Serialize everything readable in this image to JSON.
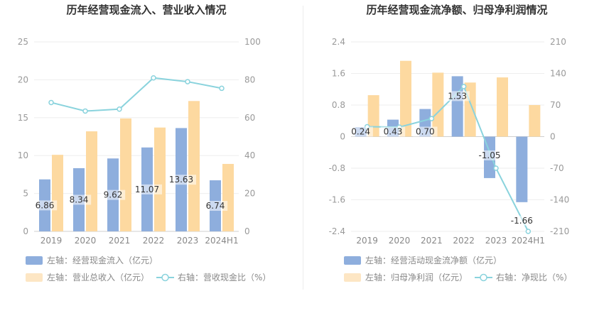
{
  "chart_data": [
    {
      "type": "bar+line",
      "title": "历年经营现金流入、营业收入情况",
      "categories": [
        "2019",
        "2020",
        "2021",
        "2022",
        "2023",
        "2024H1"
      ],
      "left_axis": {
        "ticks": [
          "25",
          "20",
          "15",
          "10",
          "5",
          "0"
        ],
        "min": 0,
        "max": 25
      },
      "right_axis": {
        "ticks": [
          "100",
          "80",
          "60",
          "40",
          "20",
          "0"
        ],
        "min": 0,
        "max": 100
      },
      "series": [
        {
          "name": "左轴：经营现金流入（亿元）",
          "type": "bar",
          "axis": "left",
          "color": "#8eaedd",
          "values": [
            6.86,
            8.34,
            9.62,
            11.07,
            13.63,
            6.74
          ],
          "labels": [
            "6.86",
            "8.34",
            "9.62",
            "11.07",
            "13.63",
            "6.74"
          ]
        },
        {
          "name": "左轴：营业总收入（亿元）",
          "type": "bar",
          "axis": "left",
          "color": "#fdd9a0",
          "values": [
            10.1,
            13.2,
            14.9,
            13.7,
            17.2,
            8.9
          ]
        },
        {
          "name": "右轴：营收现金比（%）",
          "type": "line",
          "axis": "right",
          "color": "#8ad3dd",
          "values": [
            68,
            63.5,
            64.5,
            81,
            79,
            75.5
          ]
        }
      ]
    },
    {
      "type": "bar+line",
      "title": "历年经营现金流净额、归母净利润情况",
      "categories": [
        "2019",
        "2020",
        "2021",
        "2022",
        "2023",
        "2024H1"
      ],
      "left_axis": {
        "ticks": [
          "2.4",
          "1.6",
          "0.8",
          "0",
          "-0.8",
          "-1.6",
          "-2.4"
        ],
        "min": -2.4,
        "max": 2.4
      },
      "right_axis": {
        "ticks": [
          "210",
          "140",
          "70",
          "0",
          "-70",
          "-140",
          "-210"
        ],
        "min": -210,
        "max": 210
      },
      "series": [
        {
          "name": "左轴：经营活动现金流净额（亿元）",
          "type": "bar",
          "axis": "left",
          "color": "#8eaedd",
          "values": [
            0.24,
            0.43,
            0.7,
            1.53,
            -1.05,
            -1.66
          ],
          "labels": [
            "0.24",
            "0.43",
            "0.70",
            "1.53",
            "-1.05",
            "-1.66"
          ]
        },
        {
          "name": "左轴：归母净利润（亿元）",
          "type": "bar",
          "axis": "left",
          "color": "#fdd9a0",
          "values": [
            1.05,
            1.92,
            1.62,
            1.37,
            1.5,
            0.8
          ]
        },
        {
          "name": "右轴：净现比（%）",
          "type": "line",
          "axis": "right",
          "color": "#8ad3dd",
          "values": [
            22,
            21,
            40,
            111,
            -70,
            -210
          ]
        }
      ]
    }
  ]
}
